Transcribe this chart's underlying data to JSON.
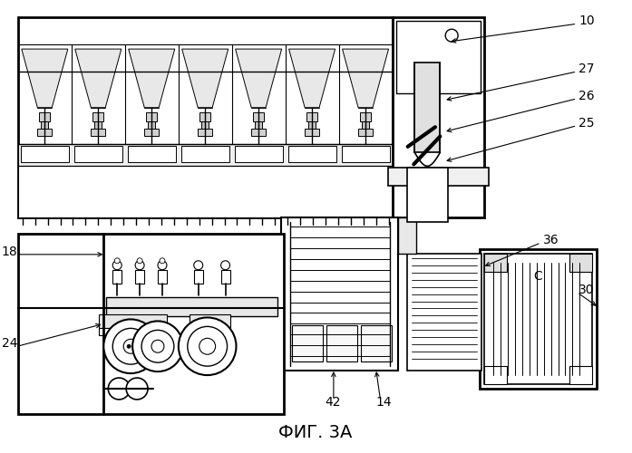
{
  "title": "ФИГ. 3А",
  "bg_color": "#ffffff",
  "fig_width": 6.97,
  "fig_height": 5.0,
  "dpi": 100,
  "gray_light": "#d0d0d0",
  "gray_mid": "#b0b0b0",
  "gray_dark": "#808080"
}
